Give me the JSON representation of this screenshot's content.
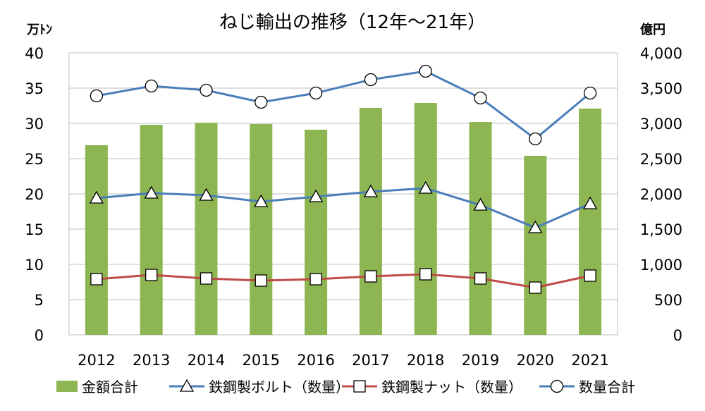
{
  "chart_data": {
    "type": "bar",
    "title": "ねじ輸出の推移（12年～21年）",
    "left_unit": "万ﾄﾝ",
    "right_unit": "億円",
    "categories": [
      "2012",
      "2013",
      "2014",
      "2015",
      "2016",
      "2017",
      "2018",
      "2019",
      "2020",
      "2021"
    ],
    "ylim_left": [
      0,
      40
    ],
    "ylim_right": [
      0,
      4000
    ],
    "left_ticks": [
      "0",
      "5",
      "10",
      "15",
      "20",
      "25",
      "30",
      "35",
      "40"
    ],
    "right_ticks": [
      "0",
      "500",
      "1,000",
      "1,500",
      "2,000",
      "2,500",
      "3,000",
      "3,500",
      "4,000"
    ],
    "grid": true,
    "legend_position": "bottom",
    "series": [
      {
        "name": "金額合計",
        "kind": "bar",
        "axis": "right",
        "color": "#8db552",
        "values": [
          2690,
          2980,
          3010,
          2990,
          2910,
          3220,
          3290,
          3020,
          2540,
          3210
        ]
      },
      {
        "name": "鉄鋼製ボルト（数量）",
        "kind": "line",
        "axis": "left",
        "color": "#4a7ebb",
        "marker": "triangle",
        "values": [
          19.4,
          20.1,
          19.8,
          18.9,
          19.6,
          20.3,
          20.8,
          18.4,
          15.2,
          18.6
        ]
      },
      {
        "name": "鉄鋼製ナット（数量）",
        "kind": "line",
        "axis": "left",
        "color": "#be4b48",
        "marker": "square",
        "values": [
          7.9,
          8.5,
          8.0,
          7.7,
          7.9,
          8.3,
          8.6,
          8.0,
          6.7,
          8.4
        ]
      },
      {
        "name": "数量合計",
        "kind": "line",
        "axis": "left",
        "color": "#4a7ebb",
        "marker": "circle",
        "values": [
          33.9,
          35.3,
          34.7,
          33.0,
          34.3,
          36.2,
          37.4,
          33.6,
          27.8,
          34.3
        ]
      }
    ]
  }
}
